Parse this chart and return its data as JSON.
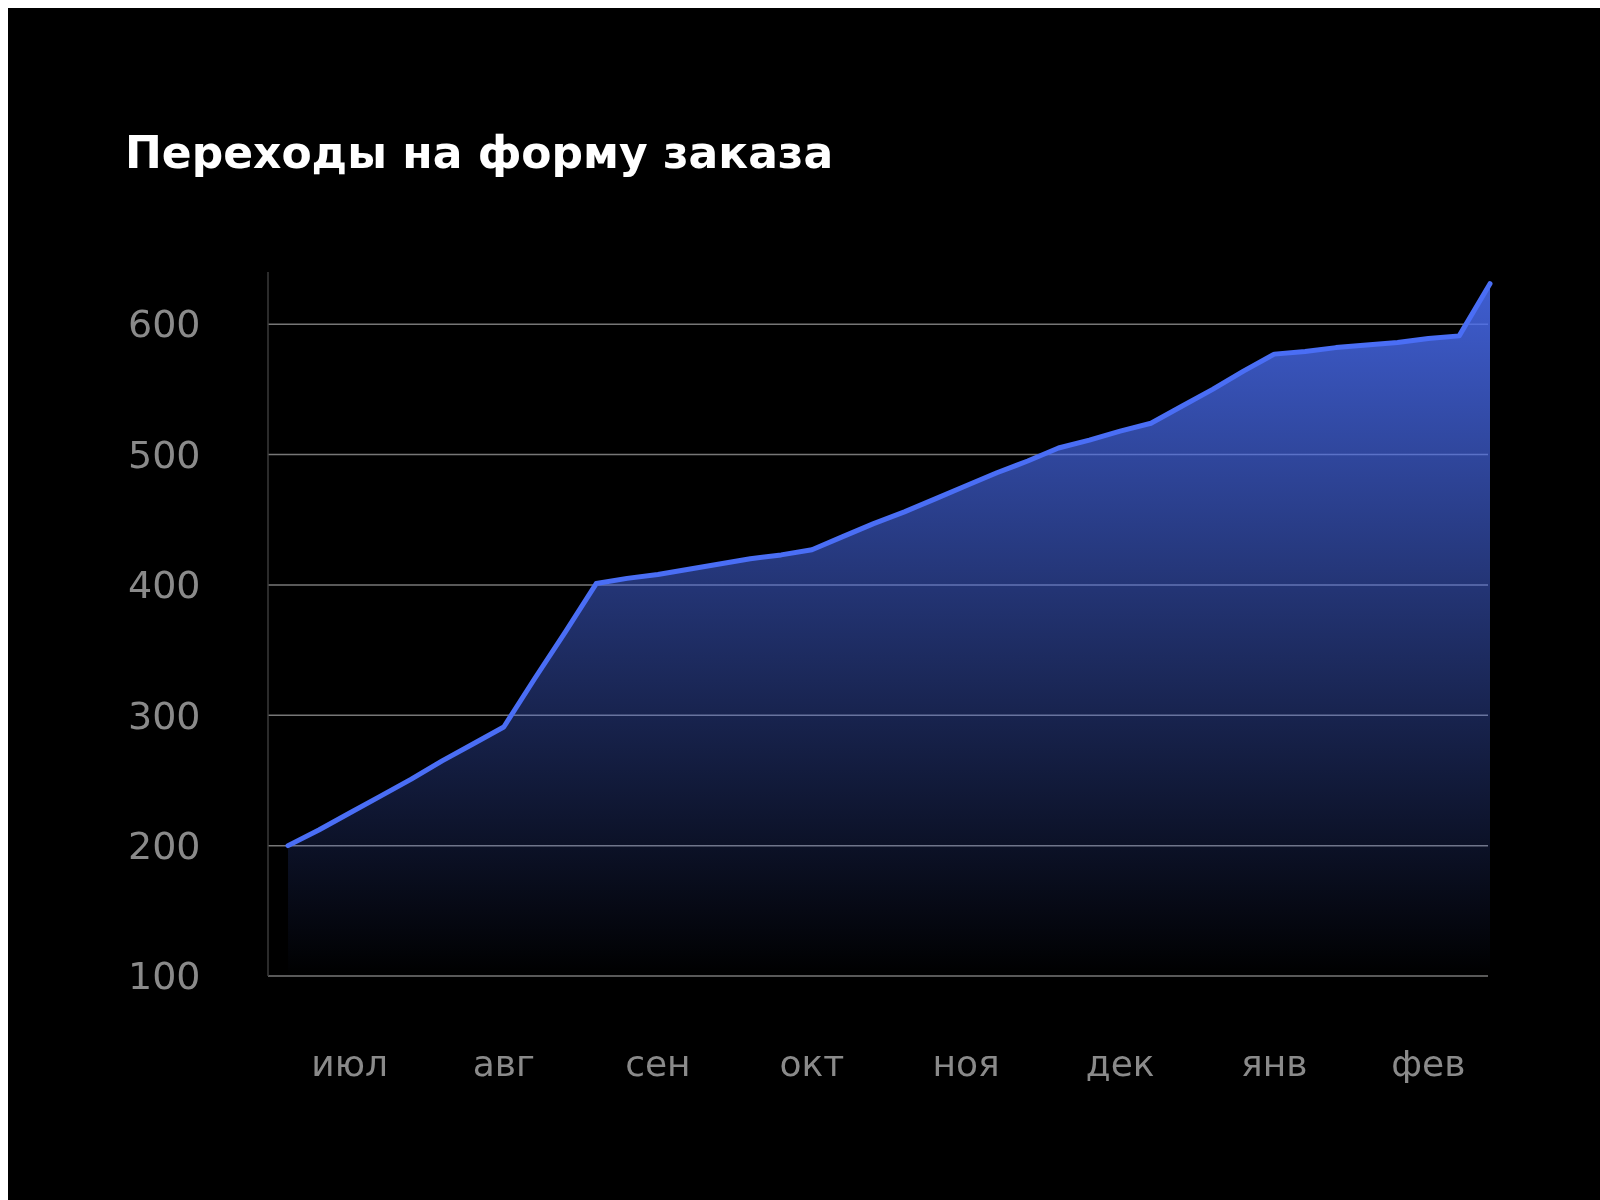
{
  "chart_data": {
    "type": "area",
    "title": "Переходы на форму заказа",
    "categories": [
      null,
      null,
      "июл",
      null,
      null,
      null,
      null,
      "авг",
      null,
      null,
      null,
      null,
      "сен",
      null,
      null,
      null,
      null,
      "окт",
      null,
      null,
      null,
      null,
      "ноя",
      null,
      null,
      null,
      null,
      "дек",
      null,
      null,
      null,
      null,
      "янв",
      null,
      null,
      null,
      null,
      "фев",
      null,
      null
    ],
    "series": [
      {
        "color": "#4a6ef5",
        "values": [
          200,
          212,
          225,
          238,
          251,
          265,
          278,
          291,
          328,
          364,
          401,
          405,
          408,
          412,
          416,
          420,
          423,
          427,
          437,
          447,
          456,
          466,
          476,
          486,
          495,
          505,
          511,
          518,
          524,
          537,
          550,
          564,
          577,
          579,
          582,
          584,
          586,
          589,
          591,
          631
        ]
      }
    ],
    "ylim": [
      100,
      640
    ],
    "yticks": [
      100,
      200,
      300,
      400,
      500,
      600
    ],
    "grid": "y"
  }
}
